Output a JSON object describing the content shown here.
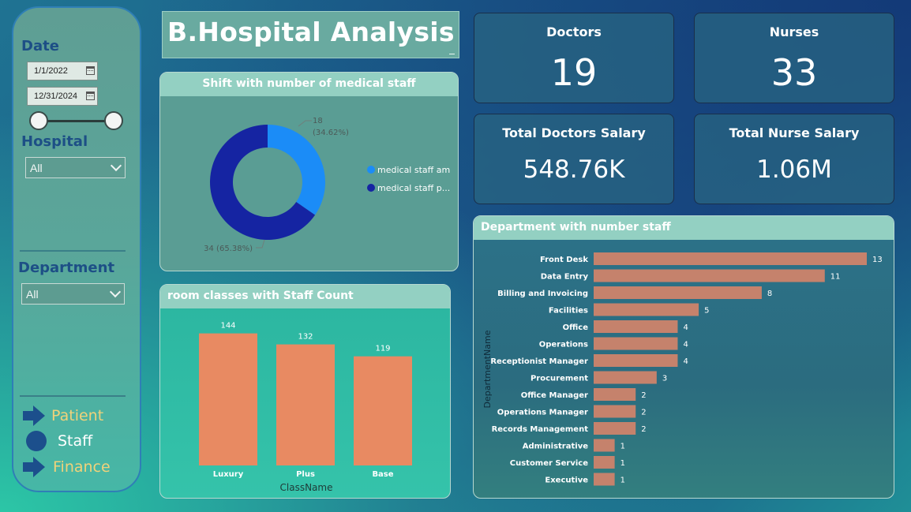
{
  "sidebar": {
    "date_label": "Date",
    "date_start": "1/1/2022",
    "date_end": "12/31/2024",
    "hospital_label": "Hospital",
    "hospital_value": "All",
    "department_label": "Department",
    "department_value": "All",
    "nav": [
      {
        "label": "Patient",
        "icon": "arrow-right-icon",
        "color": "#f0d27a"
      },
      {
        "label": "Staff",
        "icon": "circle-icon",
        "color": "#ffffff"
      },
      {
        "label": "Finance",
        "icon": "arrow-right-icon",
        "color": "#f0d27a"
      }
    ]
  },
  "title": "B.Hospital Analysis",
  "kpis": {
    "doctors": {
      "label": "Doctors",
      "value": "19"
    },
    "nurses": {
      "label": "Nurses",
      "value": "33"
    },
    "doctors_salary": {
      "label": "Total Doctors Salary",
      "value": "548.76K"
    },
    "nurse_salary": {
      "label": "Total Nurse Salary",
      "value": "1.06M"
    }
  },
  "colors": {
    "donut_light": "#1b8cf7",
    "donut_dark": "#1524a2",
    "bar_orange": "#e88a62",
    "bar_salmon": "#c5826c"
  },
  "chart_data": [
    {
      "type": "pie",
      "title": "Shift with number of medical staff",
      "legend_position": "right",
      "slices": [
        {
          "name": "medical staff am",
          "value": 18,
          "label": "18",
          "pct_label": "(34.62%)",
          "color": "#1b8cf7"
        },
        {
          "name": "medical staff p...",
          "value": 34,
          "label": "34 (65.38%)",
          "color": "#1524a2"
        }
      ]
    },
    {
      "type": "bar",
      "title": "room classes with Staff Count",
      "xlabel": "ClassName",
      "ylabel": "",
      "categories": [
        "Luxury",
        "Plus",
        "Base"
      ],
      "values": [
        144,
        132,
        119
      ],
      "ylim": [
        0,
        160
      ],
      "grid": false
    },
    {
      "type": "bar",
      "orientation": "horizontal",
      "title": "Department with number staff",
      "xlabel": "",
      "ylabel": "DepartmentName",
      "categories": [
        "Front Desk",
        "Data Entry",
        "Billing and Invoicing",
        "Facilities",
        "Office",
        "Operations",
        "Receptionist Manager",
        "Procurement",
        "Office Manager",
        "Operations Manager",
        "Records Management",
        "Administrative",
        "Customer Service",
        "Executive"
      ],
      "values": [
        13,
        11,
        8,
        5,
        4,
        4,
        4,
        3,
        2,
        2,
        2,
        1,
        1,
        1
      ],
      "xlim": [
        0,
        13
      ],
      "grid": false
    }
  ]
}
